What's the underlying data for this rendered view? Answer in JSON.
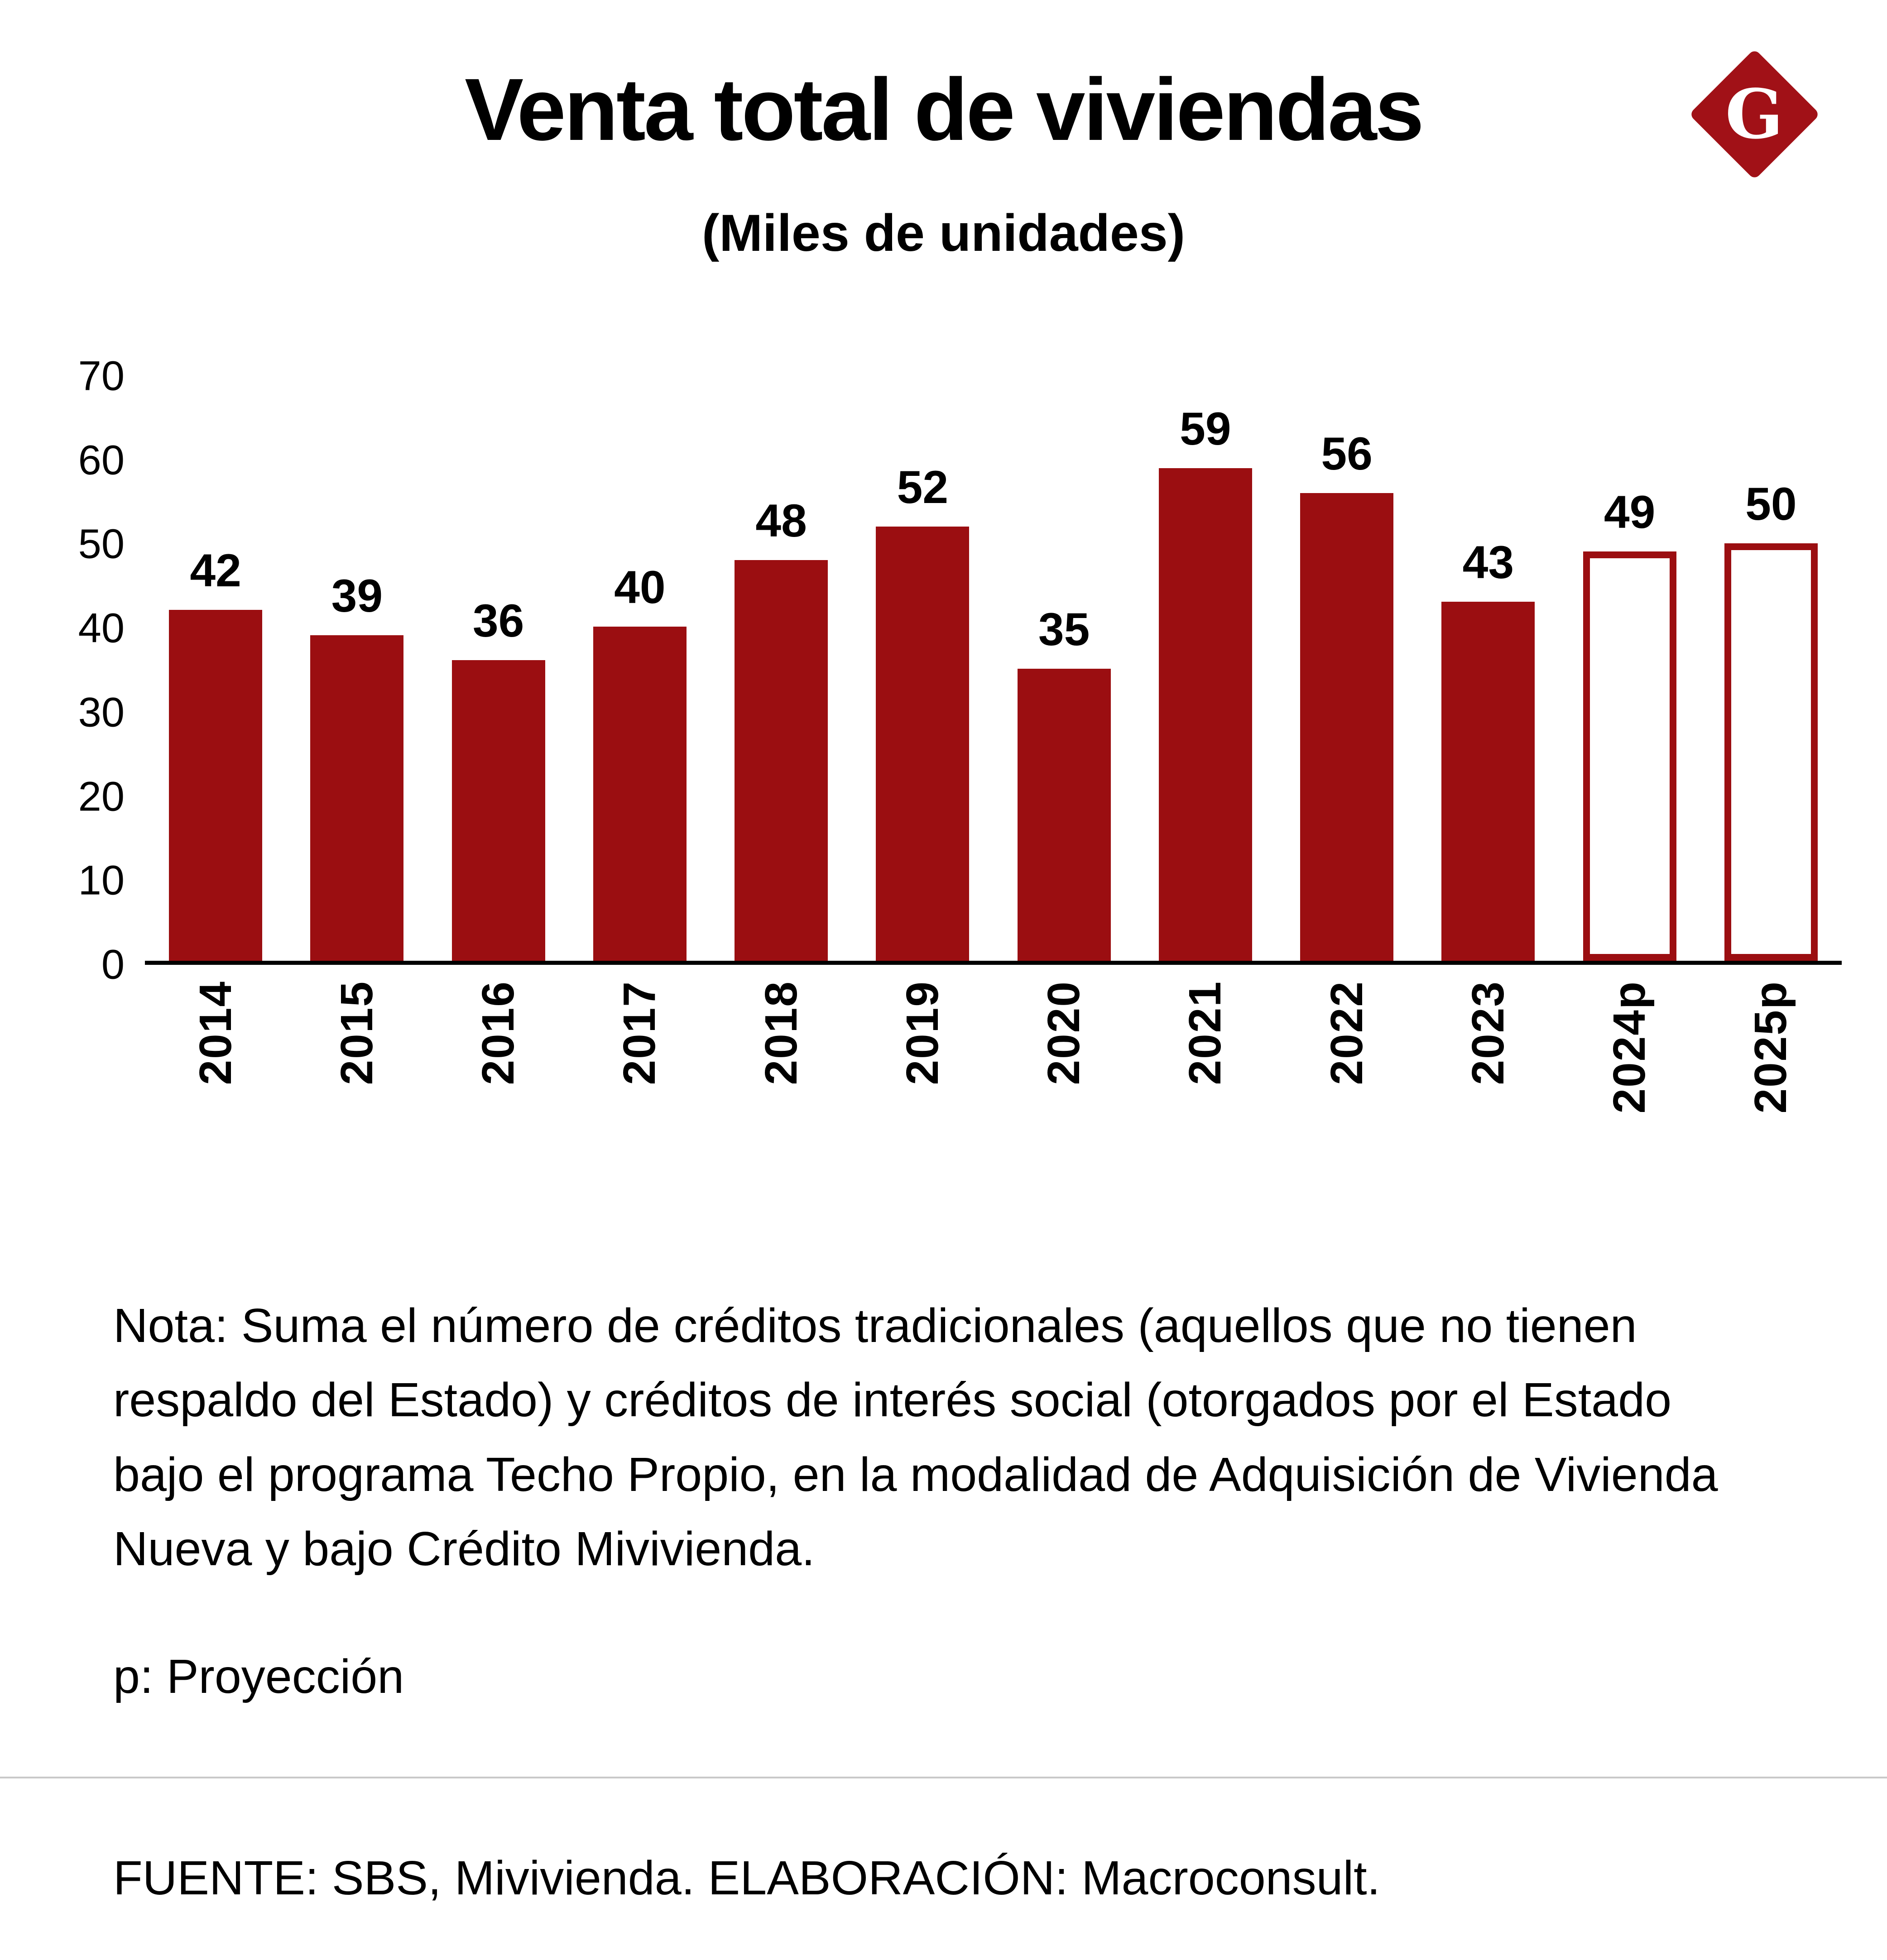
{
  "header": {
    "title": "Venta total de viviendas",
    "subtitle": "(Miles de unidades)",
    "logo_letter": "G"
  },
  "colors": {
    "bar": "#9B0E11",
    "logo": "#A11117",
    "text": "#000000",
    "divider": "#c9c9c9"
  },
  "chart_data": {
    "type": "bar",
    "title": "Venta total de viviendas",
    "subtitle": "(Miles de unidades)",
    "categories": [
      "2014",
      "2015",
      "2016",
      "2017",
      "2018",
      "2019",
      "2020",
      "2021",
      "2022",
      "2023",
      "2024p",
      "2025p"
    ],
    "values": [
      42,
      39,
      36,
      40,
      48,
      52,
      35,
      59,
      56,
      43,
      49,
      50
    ],
    "projected": [
      false,
      false,
      false,
      false,
      false,
      false,
      false,
      false,
      false,
      false,
      true,
      true
    ],
    "xlabel": "",
    "ylabel": "",
    "ylim": [
      0,
      70
    ],
    "yticks": [
      0,
      10,
      20,
      30,
      40,
      50,
      60,
      70
    ],
    "grid": false,
    "legend": "none",
    "bar_solid_color": "#9B0E11",
    "bar_projected_fill": "#FFFFFF",
    "bar_projected_border": "#9B0E11"
  },
  "notes": {
    "nota": "Nota: Suma el número de créditos tradicionales (aquellos que no tienen respaldo del Estado) y créditos de interés social (otorgados por el Estado bajo el programa Techo Propio, en la modalidad de Adquisición de Vivienda Nueva y bajo Crédito Mivivienda.",
    "proyeccion": "p: Proyección",
    "fuente": "FUENTE: SBS, Mivivienda. ELABORACIÓN: Macroconsult."
  }
}
